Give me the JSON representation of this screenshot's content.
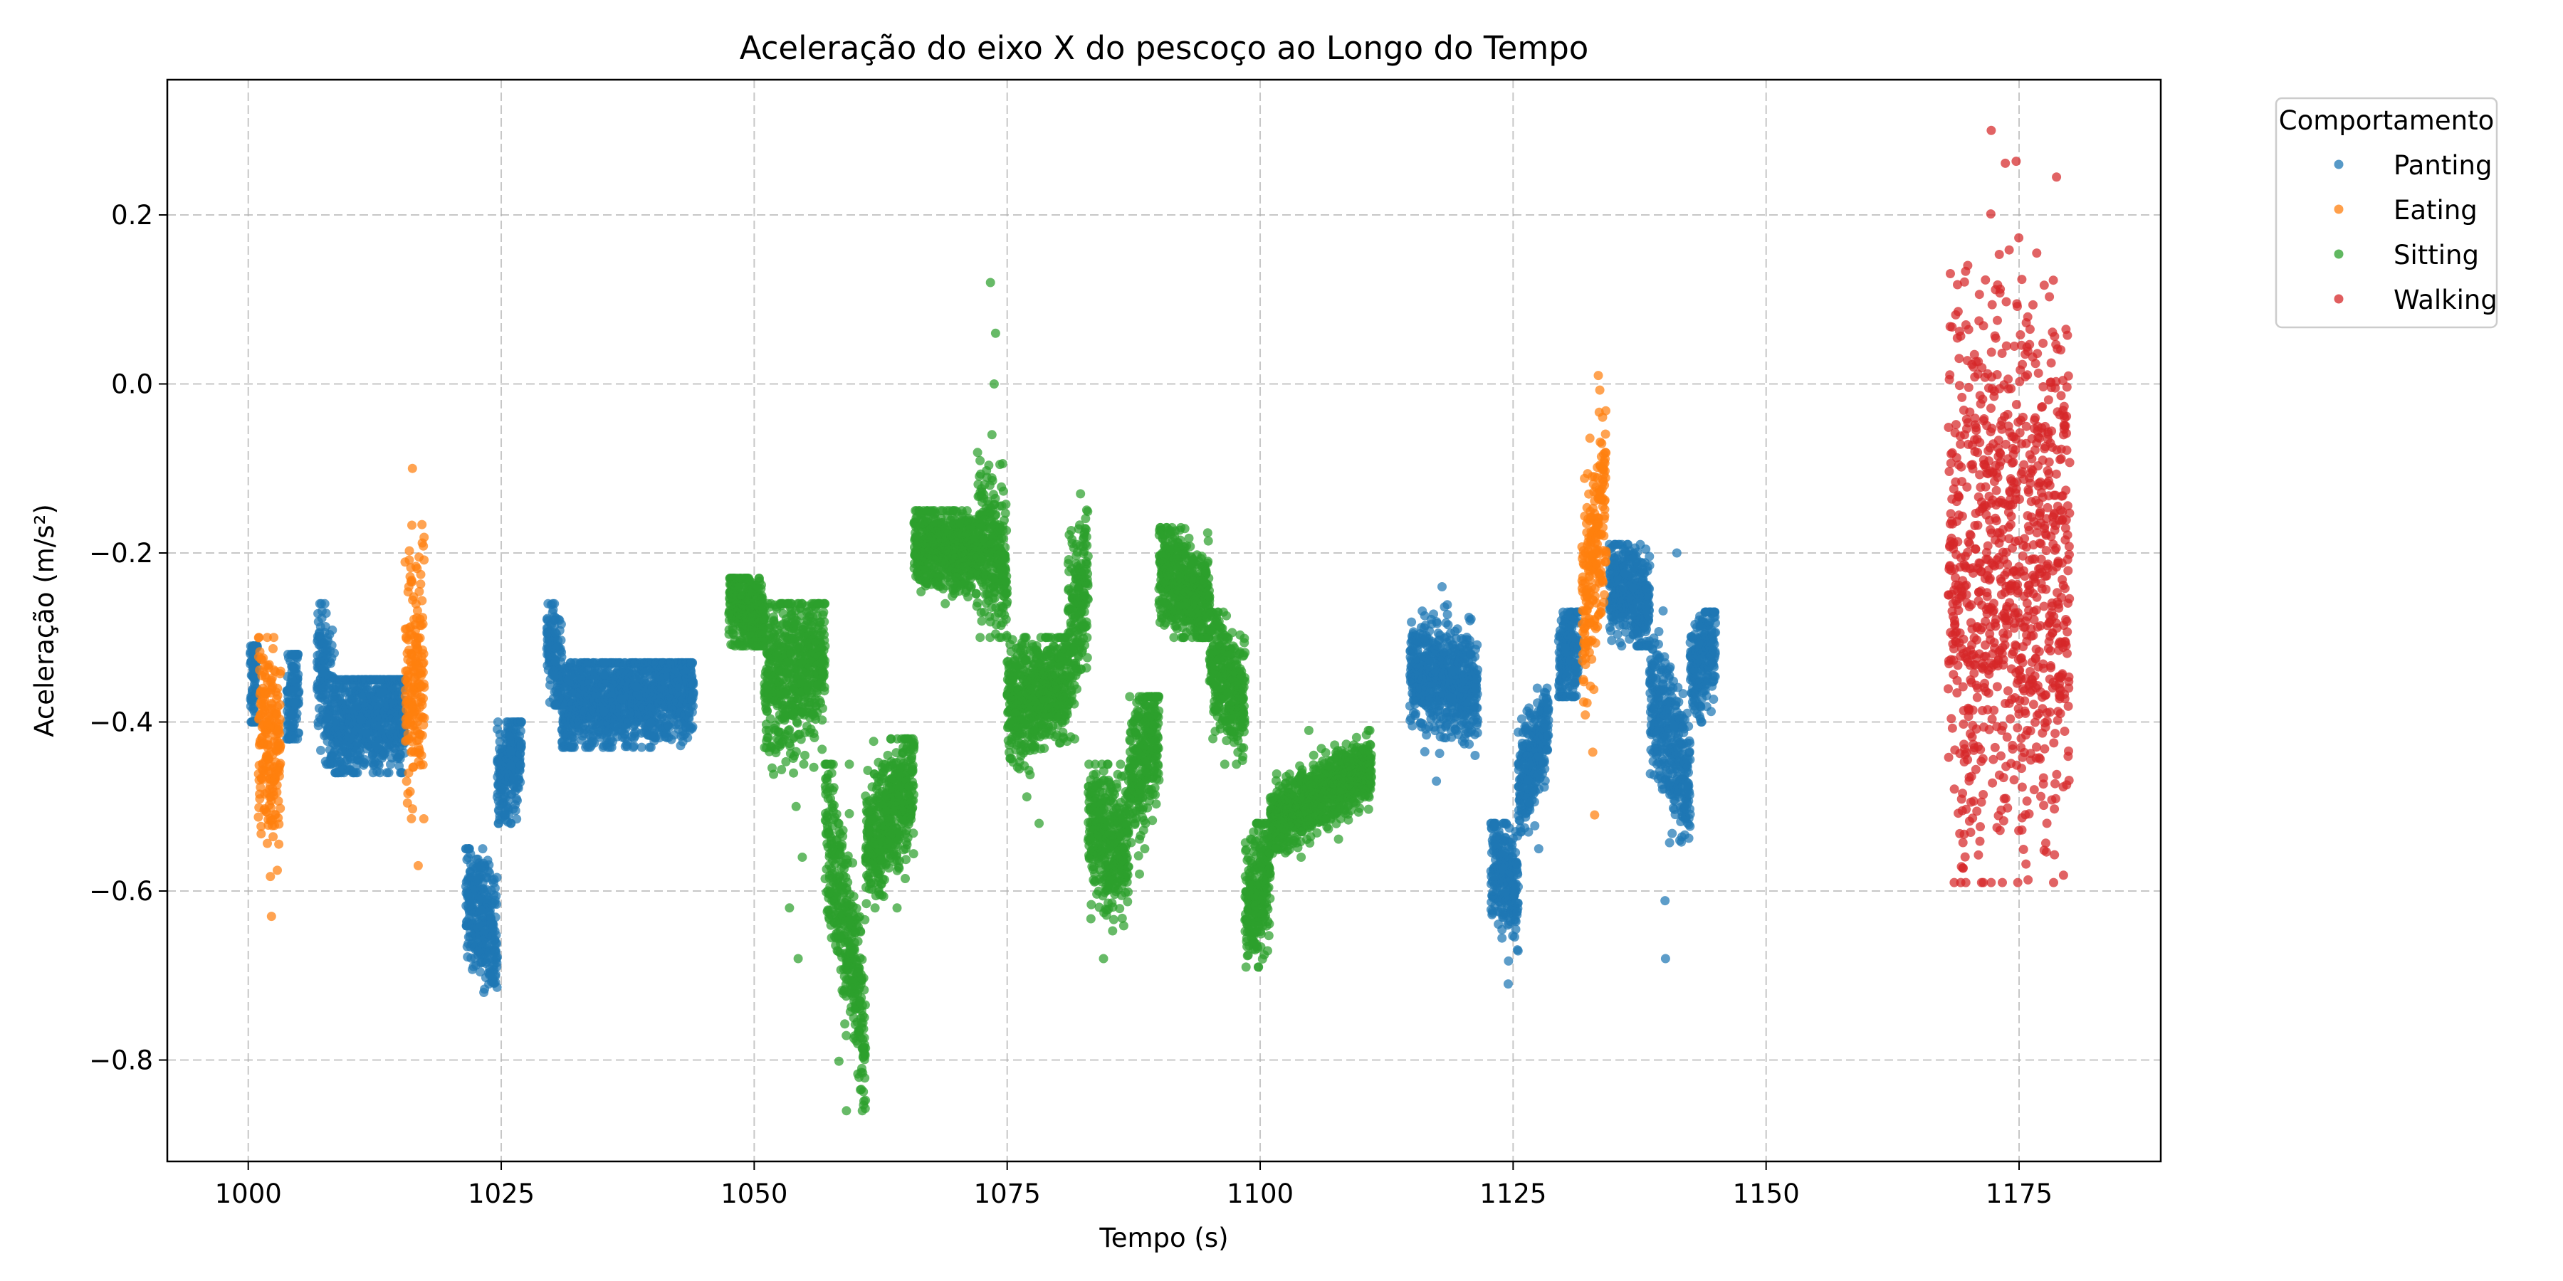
{
  "chart_data": {
    "type": "scatter",
    "title": "Aceleração do eixo X do pescoço ao Longo do Tempo",
    "xlabel": "Tempo (s)",
    "ylabel": "Aceleração (m/s²)",
    "xlim": [
      992,
      1189
    ],
    "ylim": [
      -0.92,
      0.36
    ],
    "x_ticks": [
      1000,
      1025,
      1050,
      1075,
      1100,
      1125,
      1150,
      1175
    ],
    "y_ticks": [
      -0.8,
      -0.6,
      -0.4,
      -0.2,
      0.0,
      0.2
    ],
    "y_tick_labels": [
      "−0.8",
      "−0.6",
      "−0.4",
      "−0.2",
      "0.0",
      "0.2"
    ],
    "grid": true,
    "legend": {
      "title": "Comportamento",
      "placement": "upper-right-outside"
    },
    "series": [
      {
        "name": "Panting",
        "color": "#1f77b4",
        "segments": [
          {
            "x0": 1000.2,
            "x1": 1000.9,
            "center": [
              -0.36,
              -0.35
            ],
            "spread": 0.04,
            "extremes": [
              -0.31,
              -0.4
            ]
          },
          {
            "x0": 1003.8,
            "x1": 1005.0,
            "center": [
              -0.39,
              -0.36
            ],
            "spread": 0.03,
            "extremes": [
              -0.32,
              -0.42
            ]
          },
          {
            "x0": 1006.8,
            "x1": 1008.5,
            "center": [
              -0.31,
              -0.4
            ],
            "spread": 0.04,
            "extremes": [
              -0.26,
              -0.45
            ]
          },
          {
            "x0": 1008.5,
            "x1": 1015.5,
            "center": [
              -0.41,
              -0.38
            ],
            "spread": 0.035,
            "extremes": [
              -0.35,
              -0.46
            ]
          },
          {
            "x0": 1021.5,
            "x1": 1024.6,
            "center": [
              -0.6,
              -0.66
            ],
            "spread": 0.04,
            "extremes": [
              -0.55,
              -0.72
            ]
          },
          {
            "x0": 1024.6,
            "x1": 1027.0,
            "center": [
              -0.47,
              -0.43
            ],
            "spread": 0.03,
            "extremes": [
              -0.4,
              -0.52
            ]
          },
          {
            "x0": 1029.5,
            "x1": 1031.0,
            "center": [
              -0.3,
              -0.35
            ],
            "spread": 0.03,
            "extremes": [
              -0.26,
              -0.38
            ]
          },
          {
            "x0": 1031.0,
            "x1": 1044.0,
            "center": [
              -0.38,
              -0.36
            ],
            "spread": 0.03,
            "extremes": [
              -0.33,
              -0.43
            ]
          },
          {
            "x0": 1114.8,
            "x1": 1121.5,
            "center": [
              -0.34,
              -0.36
            ],
            "spread": 0.03,
            "extremes": [
              -0.24,
              -0.47
            ]
          },
          {
            "x0": 1122.8,
            "x1": 1125.5,
            "center": [
              -0.56,
              -0.6
            ],
            "spread": 0.035,
            "extremes": [
              -0.52,
              -0.71
            ]
          },
          {
            "x0": 1125.5,
            "x1": 1128.5,
            "center": [
              -0.48,
              -0.4
            ],
            "spread": 0.03,
            "extremes": [
              -0.36,
              -0.55
            ]
          },
          {
            "x0": 1129.5,
            "x1": 1131.5,
            "center": [
              -0.33,
              -0.3
            ],
            "spread": 0.03,
            "extremes": [
              -0.27,
              -0.37
            ]
          },
          {
            "x0": 1134.5,
            "x1": 1138.5,
            "center": [
              -0.23,
              -0.27
            ],
            "spread": 0.03,
            "extremes": [
              -0.19,
              -0.31
            ]
          },
          {
            "x0": 1138.5,
            "x1": 1142.5,
            "center": [
              -0.36,
              -0.48
            ],
            "spread": 0.04,
            "extremes": [
              -0.2,
              -0.68
            ]
          },
          {
            "x0": 1142.5,
            "x1": 1145.0,
            "center": [
              -0.34,
              -0.3
            ],
            "spread": 0.03,
            "extremes": [
              -0.27,
              -0.4
            ]
          }
        ]
      },
      {
        "name": "Eating",
        "color": "#ff7f0e",
        "segments": [
          {
            "x0": 1001.0,
            "x1": 1003.2,
            "center": [
              -0.41,
              -0.43
            ],
            "spread": 0.06,
            "extremes": [
              -0.3,
              -0.63
            ]
          },
          {
            "x0": 1015.5,
            "x1": 1017.4,
            "center": [
              -0.36,
              -0.33
            ],
            "spread": 0.07,
            "extremes": [
              -0.1,
              -0.57
            ]
          },
          {
            "x0": 1131.8,
            "x1": 1134.2,
            "center": [
              -0.28,
              -0.13
            ],
            "spread": 0.06,
            "extremes": [
              0.01,
              -0.51
            ]
          }
        ]
      },
      {
        "name": "Sitting",
        "color": "#2ca02c",
        "segments": [
          {
            "x0": 1047.5,
            "x1": 1051.0,
            "center": [
              -0.25,
              -0.28
            ],
            "spread": 0.025,
            "extremes": [
              -0.23,
              -0.31
            ]
          },
          {
            "x0": 1051.0,
            "x1": 1057.0,
            "center": [
              -0.35,
              -0.32
            ],
            "spread": 0.05,
            "extremes": [
              -0.26,
              -0.68
            ]
          },
          {
            "x0": 1057.0,
            "x1": 1061.0,
            "center": [
              -0.5,
              -0.78
            ],
            "spread": 0.05,
            "extremes": [
              -0.45,
              -0.86
            ]
          },
          {
            "x0": 1061.0,
            "x1": 1065.8,
            "center": [
              -0.55,
              -0.47
            ],
            "spread": 0.04,
            "extremes": [
              -0.42,
              -0.62
            ]
          },
          {
            "x0": 1065.8,
            "x1": 1072.0,
            "center": [
              -0.19,
              -0.2
            ],
            "spread": 0.025,
            "extremes": [
              -0.15,
              -0.26
            ]
          },
          {
            "x0": 1072.0,
            "x1": 1075.0,
            "center": [
              -0.18,
              -0.22
            ],
            "spread": 0.04,
            "extremes": [
              0.12,
              -0.3
            ]
          },
          {
            "x0": 1075.0,
            "x1": 1081.0,
            "center": [
              -0.38,
              -0.35
            ],
            "spread": 0.035,
            "extremes": [
              -0.3,
              -0.52
            ]
          },
          {
            "x0": 1081.0,
            "x1": 1083.0,
            "center": [
              -0.3,
              -0.22
            ],
            "spread": 0.05,
            "extremes": [
              -0.13,
              -0.42
            ]
          },
          {
            "x0": 1083.0,
            "x1": 1087.0,
            "center": [
              -0.52,
              -0.55
            ],
            "spread": 0.04,
            "extremes": [
              -0.45,
              -0.68
            ]
          },
          {
            "x0": 1087.0,
            "x1": 1090.0,
            "center": [
              -0.48,
              -0.4
            ],
            "spread": 0.04,
            "extremes": [
              -0.37,
              -0.58
            ]
          },
          {
            "x0": 1090.0,
            "x1": 1095.0,
            "center": [
              -0.22,
              -0.26
            ],
            "spread": 0.03,
            "extremes": [
              -0.17,
              -0.3
            ]
          },
          {
            "x0": 1095.0,
            "x1": 1098.5,
            "center": [
              -0.32,
              -0.38
            ],
            "spread": 0.035,
            "extremes": [
              -0.27,
              -0.45
            ]
          },
          {
            "x0": 1098.5,
            "x1": 1101.0,
            "center": [
              -0.62,
              -0.58
            ],
            "spread": 0.04,
            "extremes": [
              -0.52,
              -0.69
            ]
          },
          {
            "x0": 1101.0,
            "x1": 1111.0,
            "center": [
              -0.52,
              -0.45
            ],
            "spread": 0.02,
            "extremes": [
              -0.41,
              -0.56
            ]
          }
        ]
      },
      {
        "name": "Walking",
        "color": "#d62728",
        "segments": [
          {
            "x0": 1168.0,
            "x1": 1180.0,
            "center": [
              -0.22,
              -0.22
            ],
            "spread": 0.17,
            "extremes": [
              0.3,
              -0.59
            ]
          }
        ]
      }
    ]
  }
}
